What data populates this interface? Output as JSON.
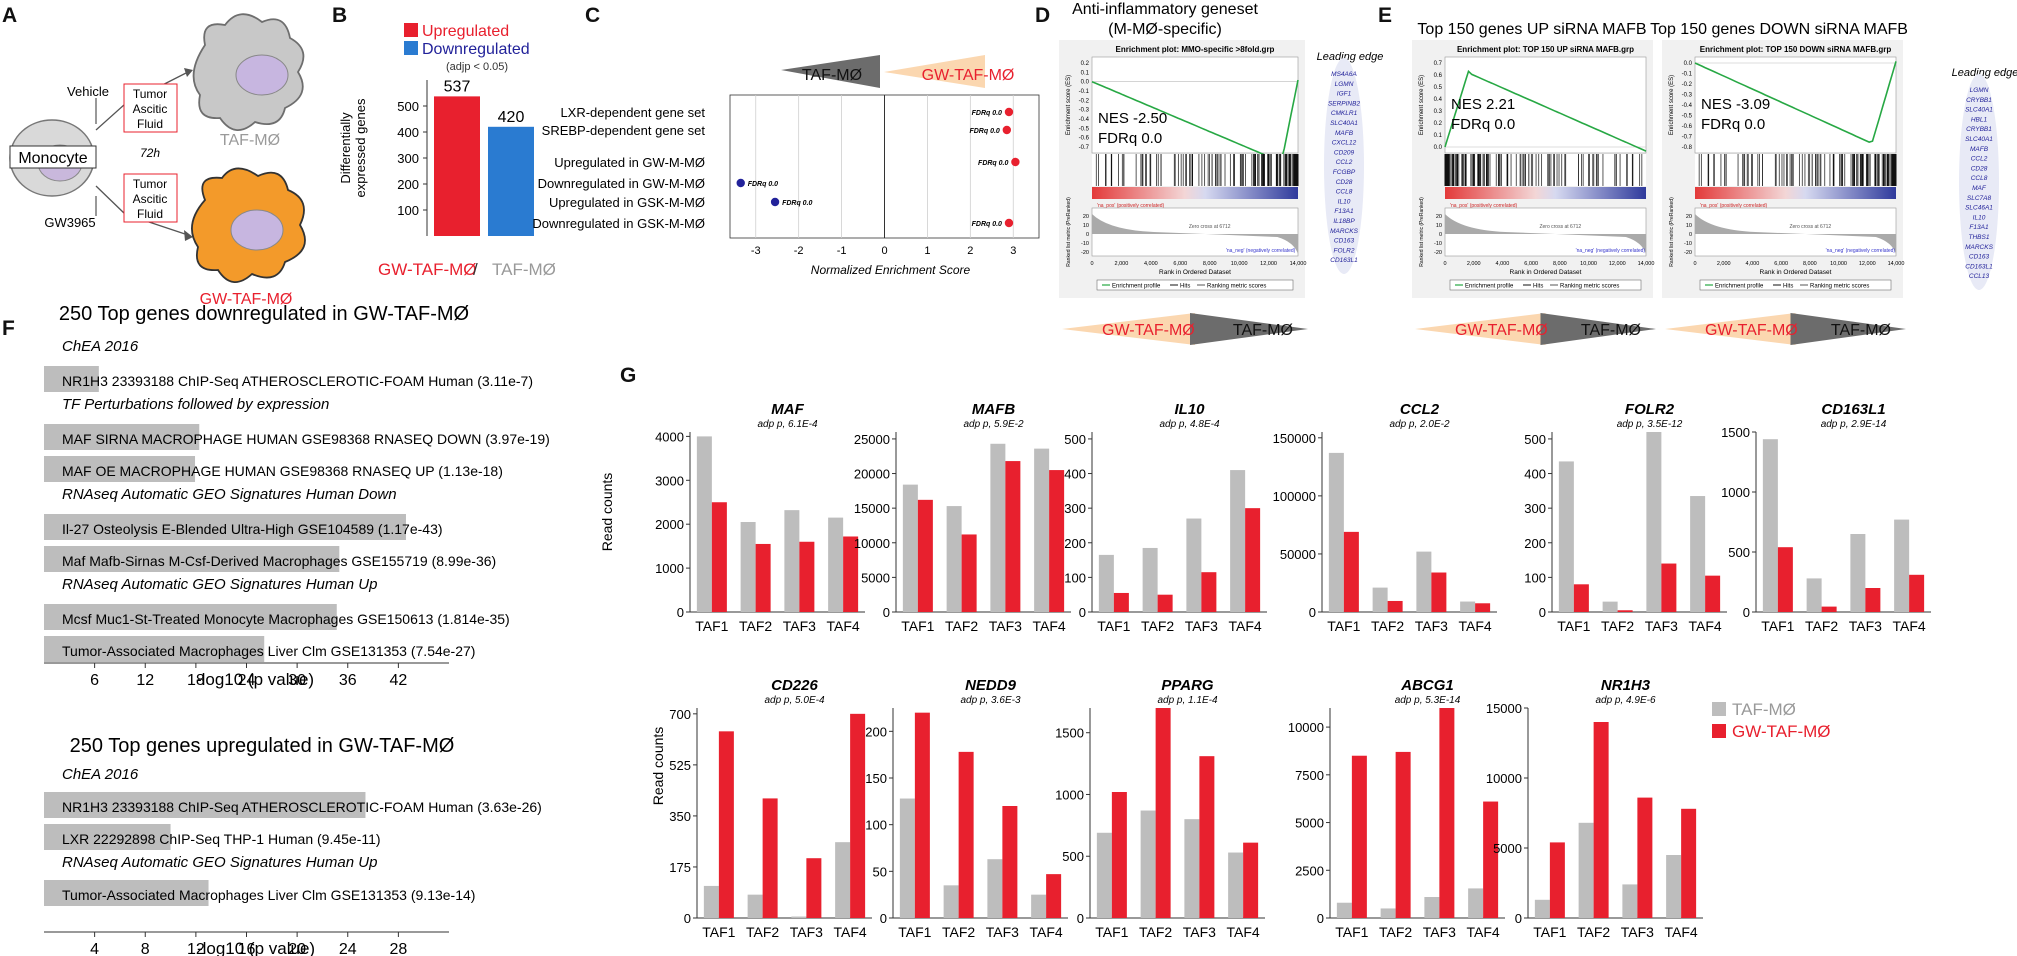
{
  "panel_letters": [
    "A",
    "B",
    "C",
    "D",
    "E",
    "F",
    "G"
  ],
  "colors": {
    "red": "#e8202e",
    "blue": "#2a7bd1",
    "gray": "#bdbdbd",
    "orange": "#f39a2a",
    "green": "#27a844",
    "navy": "#22229a"
  },
  "panel_a": {
    "monocyte": "Monocyte",
    "vehicle": "Vehicle",
    "gw3965": "GW3965",
    "time": "72h",
    "fluid_top_1": "Tumor",
    "fluid_top_2": "Ascitic",
    "fluid_top_3": "Fluid",
    "fluid_bot_1": "Tumor",
    "fluid_bot_2": "Ascitic",
    "fluid_bot_3": "Fluid",
    "taf_label": "TAF-MØ",
    "gw_label": "GW-TAF-MØ"
  },
  "panel_b": {
    "legend_up": "Upregulated",
    "legend_down": "Downregulated",
    "legend_note": "(adjp < 0.05)",
    "ylabel_1": "Differentially",
    "ylabel_2": "expressed genes",
    "xlabel_gw": "GW-TAF-MØ",
    "xlabel_sep": " / ",
    "xlabel_taf": "TAF-MØ",
    "chart_data": {
      "type": "bar",
      "categories": [
        "Upregulated",
        "Downregulated"
      ],
      "values": [
        537,
        420
      ],
      "labels": [
        "537",
        "420"
      ],
      "ylim": [
        0,
        600
      ],
      "yticks": [
        100,
        200,
        300,
        400,
        500
      ],
      "xlabel": "GW-TAF-MØ / TAF-MØ",
      "ylabel": "Differentially expressed genes"
    }
  },
  "panel_c": {
    "arrow_left": "TAF-MØ",
    "arrow_right": "GW-TAF-MØ",
    "chart_data": {
      "type": "scatter",
      "xlabel": "Normalized Enrichment Score",
      "xlim": [
        -3.6,
        3.6
      ],
      "xticks": [
        -3,
        -2,
        -1,
        0,
        1,
        2,
        3
      ],
      "gene_sets": [
        "LXR-dependent gene set",
        "SREBP-dependent gene set",
        "Upregulated in GW-M-MØ",
        "Downregulated in GW-M-MØ",
        "Upregulated in GSK-M-MØ",
        "Downregulated in GSK-M-MØ"
      ],
      "nes": [
        2.9,
        2.85,
        3.05,
        -3.35,
        -2.55,
        2.9
      ],
      "fdr_labels": [
        "FDRq 0.0",
        "FDRq 0.0",
        "FDRq 0.0",
        "FDRq 0.0",
        "FDRq 0.0",
        "FDRq 0.0"
      ]
    }
  },
  "panel_d": {
    "title_1": "Anti-inflammatory geneset",
    "title_2": "(M-MØ-specific)",
    "plot_title": "Enrichment plot: MMO-specific >8fold.grp",
    "nes": "NES  -2.50",
    "fdr": "FDRq   0.0",
    "leading_edge": "Leading edge",
    "genes": [
      "MS4A6A",
      "LGMN",
      "IGF1",
      "SERPINB2",
      "CMKLR1",
      "SLC40A1",
      "MAFB",
      "CXCL12",
      "CD209",
      "CCL2",
      "FCGBP",
      "CD28",
      "CCL8",
      "IL10",
      "F13A1",
      "IL18BP",
      "MARCKS",
      "CD163",
      "FOLR2",
      "CD163L1"
    ],
    "arrow_left": "GW-TAF-MØ",
    "arrow_right": "TAF-MØ"
  },
  "panel_e": {
    "title_up": "Top 150 genes UP siRNA MAFB",
    "title_down": "Top 150 genes DOWN siRNA MAFB",
    "plot_title_up": "Enrichment plot: TOP 150 UP siRNA MAFB.grp",
    "plot_title_down": "Enrichment plot: TOP 150 DOWN siRNA MAFB.grp",
    "nes_up": "NES    2.21",
    "fdr_up": "FDRq   0.0",
    "nes_down": "NES   -3.09",
    "fdr_down": "FDRq   0.0",
    "leading_edge": "Leading edge",
    "genes": [
      "LGMN",
      "CRYBB1",
      "SLC40A1",
      "HBL1",
      "CRYBB1",
      "SLC40A1",
      "MAFB",
      "CCL2",
      "CD28",
      "CCL8",
      "MAF",
      "SLC7A8",
      "SLC46A1",
      "IL10",
      "F13A1",
      "THBS1",
      "MARCKS",
      "CD163",
      "CD163L1",
      "CCL13"
    ],
    "arrow_left": "GW-TAF-MØ",
    "arrow_right": "TAF-MØ"
  },
  "gsea_common": {
    "ylabel_es": "Enrichment score (ES)",
    "ylabel_rank": "Ranked list metric (PreRanked)",
    "xlabel": "Rank in Ordered Dataset",
    "xticks": [
      "0",
      "2,000",
      "4,000",
      "6,000",
      "8,000",
      "10,000",
      "12,000",
      "14,000"
    ],
    "pos": "'na_pos' (positively correlated)",
    "neg": "'na_neg' (negatively correlated)",
    "zero_cross": "Zero cross at 6712",
    "legend_profile": "Enrichment profile",
    "legend_hits": "Hits",
    "legend_ranking": "Ranking metric scores",
    "es_ticks_d": [
      "0.2",
      "0.1",
      "0.0",
      "-0.1",
      "-0.2",
      "-0.3",
      "-0.4",
      "-0.5",
      "-0.6",
      "-0.7"
    ],
    "es_ticks_eu": [
      "0.7",
      "0.6",
      "0.5",
      "0.4",
      "0.3",
      "0.2",
      "0.1",
      "0.0"
    ],
    "es_ticks_ed": [
      "0.0",
      "-0.1",
      "-0.2",
      "-0.3",
      "-0.4",
      "-0.5",
      "-0.6",
      "-0.7",
      "-0.8"
    ],
    "rank_ticks": [
      "20",
      "10",
      "0",
      "-10",
      "-20"
    ]
  },
  "panel_f": {
    "top_title": "250 Top genes downregulated in GW-TAF-MØ",
    "bottom_title": "250 Top genes upregulated in GW-TAF-MØ",
    "xlabel": "-log10 (p value)",
    "chart_data": [
      {
        "type": "bar",
        "title": "250 Top genes downregulated in GW-TAF-MØ",
        "xlabel": "-log10 (p value)",
        "xlim": [
          0,
          48
        ],
        "xticks": [
          6,
          12,
          18,
          24,
          30,
          36,
          42
        ],
        "rows": [
          {
            "kind": "header",
            "text": "ChEA 2016"
          },
          {
            "kind": "bar",
            "text": "NR1H3 23393188 ChIP-Seq ATHEROSCLEROTIC-FOAM Human (3.11e-7)",
            "value": 6.5
          },
          {
            "kind": "header",
            "text": "TF Perturbations followed by expression"
          },
          {
            "kind": "bar",
            "text": "MAF SIRNA MACROPHAGE HUMAN GSE98368 RNASEQ DOWN (3.97e-19)",
            "value": 18.4
          },
          {
            "kind": "bar",
            "text": "MAF OE MACROPHAGE HUMAN GSE98368 RNASEQ UP (1.13e-18)",
            "value": 17.9
          },
          {
            "kind": "header",
            "text": "RNAseq Automatic GEO Signatures Human Down"
          },
          {
            "kind": "bar",
            "text": "Il-27 Osteolysis E-Blended Ultra-High GSE104589 (1.17e-43)",
            "value": 42.9
          },
          {
            "kind": "bar",
            "text": "Maf Mafb-Sirnas M-Csf-Derived Macrophages GSE155719 (8.99e-36)",
            "value": 35.0
          },
          {
            "kind": "header",
            "text": "RNAseq Automatic GEO Signatures Human Up"
          },
          {
            "kind": "bar",
            "text": "Mcsf Muc1-St-Treated Monocyte Macrophages GSE150613 (1.814e-35)",
            "value": 34.7
          },
          {
            "kind": "bar",
            "text": "Tumor-Associated Macrophages Liver Clm GSE131353 (7.54e-27)",
            "value": 26.1
          }
        ]
      },
      {
        "type": "bar",
        "title": "250 Top genes upregulated in GW-TAF-MØ",
        "xlabel": "-log10 (p value)",
        "xlim": [
          0,
          32
        ],
        "xticks": [
          4,
          8,
          12,
          16,
          20,
          24,
          28
        ],
        "rows": [
          {
            "kind": "header",
            "text": "ChEA 2016"
          },
          {
            "kind": "bar",
            "text": "NR1H3 23393188 ChIP-Seq ATHEROSCLEROTIC-FOAM Human (3.63e-26)",
            "value": 25.4
          },
          {
            "kind": "bar",
            "text": "LXR 22292898 ChIP-Seq THP-1 Human (9.45e-11)",
            "value": 10.0
          },
          {
            "kind": "header",
            "text": "RNAseq Automatic GEO Signatures Human Up"
          },
          {
            "kind": "bar",
            "text": "Tumor-Associated Macrophages Liver Clm GSE131353 (9.13e-14)",
            "value": 13.0
          }
        ]
      }
    ]
  },
  "panel_g": {
    "ylabel": "Read counts",
    "legend_taf": "TAF-MØ",
    "legend_gw": "GW-TAF-MØ",
    "chart_data": [
      {
        "type": "bar",
        "gene": "MAF",
        "padj": "adp p, 6.1E-4",
        "categories": [
          "TAF1",
          "TAF2",
          "TAF3",
          "TAF4"
        ],
        "series": [
          {
            "name": "TAF-MØ",
            "values": [
              4000,
              2050,
              2320,
              2150
            ]
          },
          {
            "name": "GW-TAF-MØ",
            "values": [
              2500,
              1550,
              1600,
              1720
            ]
          }
        ],
        "ylim": [
          0,
          4100
        ],
        "yticks": [
          1000,
          2000,
          3000,
          4000
        ]
      },
      {
        "type": "bar",
        "gene": "MAFB",
        "padj": "adp p, 5.9E-2",
        "categories": [
          "TAF1",
          "TAF2",
          "TAF3",
          "TAF4"
        ],
        "series": [
          {
            "name": "TAF-MØ",
            "values": [
              18400,
              15300,
              24300,
              23600
            ]
          },
          {
            "name": "GW-TAF-MØ",
            "values": [
              16200,
              11200,
              21800,
              20500
            ]
          }
        ],
        "ylim": [
          0,
          26000
        ],
        "yticks": [
          5000,
          10000,
          15000,
          20000,
          25000
        ]
      },
      {
        "type": "bar",
        "gene": "IL10",
        "padj": "adp p, 4.8E-4",
        "categories": [
          "TAF1",
          "TAF2",
          "TAF3",
          "TAF4"
        ],
        "series": [
          {
            "name": "TAF-MØ",
            "values": [
              165,
              185,
              270,
              410
            ]
          },
          {
            "name": "GW-TAF-MØ",
            "values": [
              55,
              50,
              115,
              300
            ]
          }
        ],
        "ylim": [
          0,
          520
        ],
        "yticks": [
          100,
          200,
          300,
          400,
          500
        ]
      },
      {
        "type": "bar",
        "gene": "CCL2",
        "padj": "adp p, 2.0E-2",
        "categories": [
          "TAF1",
          "TAF2",
          "TAF3",
          "TAF4"
        ],
        "series": [
          {
            "name": "TAF-MØ",
            "values": [
              137000,
              21000,
              52000,
              9000
            ]
          },
          {
            "name": "GW-TAF-MØ",
            "values": [
              69000,
              9500,
              34000,
              7500
            ]
          }
        ],
        "ylim": [
          0,
          155000
        ],
        "yticks": [
          50000,
          100000,
          150000
        ]
      },
      {
        "type": "bar",
        "gene": "FOLR2",
        "padj": "adp p, 3.5E-12",
        "categories": [
          "TAF1",
          "TAF2",
          "TAF3",
          "TAF4"
        ],
        "series": [
          {
            "name": "TAF-MØ",
            "values": [
              435,
              30,
              520,
              335
            ]
          },
          {
            "name": "GW-TAF-MØ",
            "values": [
              80,
              5,
              140,
              105
            ]
          }
        ],
        "ylim": [
          0,
          520
        ],
        "yticks": [
          100,
          200,
          300,
          400,
          500
        ]
      },
      {
        "type": "bar",
        "gene": "CD163L1",
        "padj": "adp p, 2.9E-14",
        "categories": [
          "TAF1",
          "TAF2",
          "TAF3",
          "TAF4"
        ],
        "series": [
          {
            "name": "TAF-MØ",
            "values": [
              1440,
              280,
              650,
              770
            ]
          },
          {
            "name": "GW-TAF-MØ",
            "values": [
              540,
              45,
              200,
              310
            ]
          }
        ],
        "ylim": [
          0,
          1500
        ],
        "yticks": [
          500,
          1000,
          1500
        ]
      },
      {
        "type": "bar",
        "gene": "CD226",
        "padj": "adp p, 5.0E-4",
        "categories": [
          "TAF1",
          "TAF2",
          "TAF3",
          "TAF4"
        ],
        "series": [
          {
            "name": "TAF-MØ",
            "values": [
              110,
              80,
              5,
              260
            ]
          },
          {
            "name": "GW-TAF-MØ",
            "values": [
              640,
              410,
              205,
              700
            ]
          }
        ],
        "ylim": [
          0,
          720
        ],
        "yticks": [
          175,
          350,
          525,
          700
        ]
      },
      {
        "type": "bar",
        "gene": "NEDD9",
        "padj": "adp p, 3.6E-3",
        "categories": [
          "TAF1",
          "TAF2",
          "TAF3",
          "TAF4"
        ],
        "series": [
          {
            "name": "TAF-MØ",
            "values": [
              128,
              35,
              63,
              25
            ]
          },
          {
            "name": "GW-TAF-MØ",
            "values": [
              220,
              178,
              120,
              47
            ]
          }
        ],
        "ylim": [
          0,
          225
        ],
        "yticks": [
          50,
          100,
          150,
          200
        ]
      },
      {
        "type": "bar",
        "gene": "PPARG",
        "padj": "adp p, 1.1E-4",
        "categories": [
          "TAF1",
          "TAF2",
          "TAF3",
          "TAF4"
        ],
        "series": [
          {
            "name": "TAF-MØ",
            "values": [
              690,
              870,
              800,
              530
            ]
          },
          {
            "name": "GW-TAF-MØ",
            "values": [
              1020,
              1700,
              1310,
              610
            ]
          }
        ],
        "ylim": [
          0,
          1700
        ],
        "yticks": [
          500,
          1000,
          1500
        ]
      },
      {
        "type": "bar",
        "gene": "ABCG1",
        "padj": "adp p, 5.3E-14",
        "categories": [
          "TAF1",
          "TAF2",
          "TAF3",
          "TAF4"
        ],
        "series": [
          {
            "name": "TAF-MØ",
            "values": [
              800,
              500,
              1100,
              1550
            ]
          },
          {
            "name": "GW-TAF-MØ",
            "values": [
              8500,
              8700,
              11000,
              6100
            ]
          }
        ],
        "ylim": [
          0,
          11000
        ],
        "yticks": [
          2500,
          5000,
          7500,
          10000
        ]
      },
      {
        "type": "bar",
        "gene": "NR1H3",
        "padj": "adp p, 4.9E-6",
        "categories": [
          "TAF1",
          "TAF2",
          "TAF3",
          "TAF4"
        ],
        "series": [
          {
            "name": "TAF-MØ",
            "values": [
              1300,
              6800,
              2400,
              4500
            ]
          },
          {
            "name": "GW-TAF-MØ",
            "values": [
              5400,
              14000,
              8600,
              7800
            ]
          }
        ],
        "ylim": [
          0,
          15000
        ],
        "yticks": [
          5000,
          10000,
          15000
        ]
      }
    ]
  }
}
